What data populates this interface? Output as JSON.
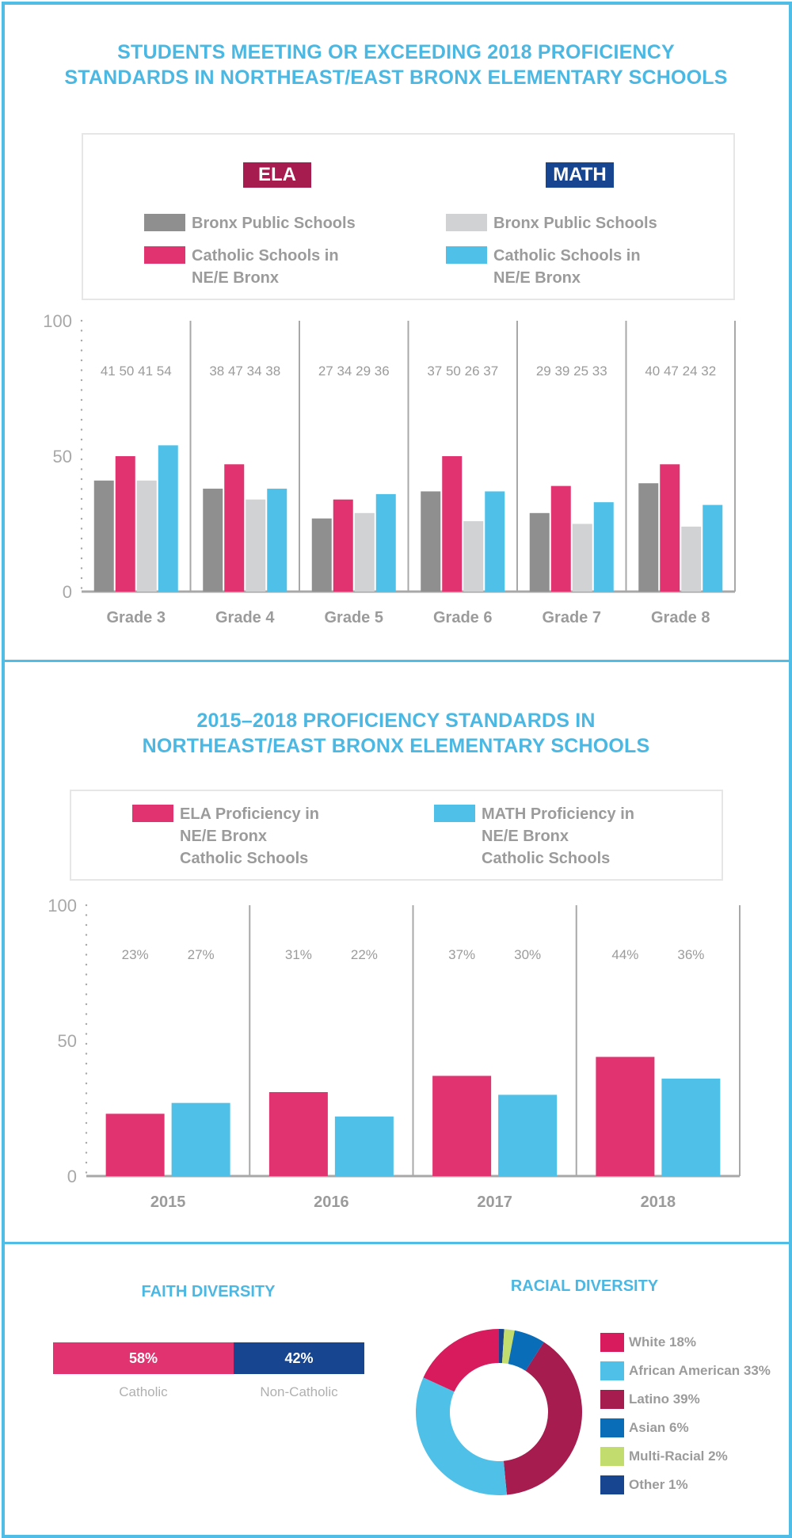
{
  "colors": {
    "frame": "#4FBDE6",
    "title": "#4AB8E3",
    "bronx_ela": "#8F8F8F",
    "catholic_ela": "#E0336F",
    "bronx_math": "#D1D2D4",
    "catholic_math": "#4FC1E8",
    "ela_badge": "#A61C4F",
    "math_badge": "#17458F",
    "axis": "#A8A8A8",
    "text_gray": "#9B9B9B"
  },
  "chart_data": [
    {
      "type": "bar",
      "title": "STUDENTS MEETING OR EXCEEDING 2018 PROFICIENCY STANDARDS IN NORTHEAST/EAST BRONX ELEMENTARY SCHOOLS",
      "title_lines": [
        "STUDENTS MEETING OR EXCEEDING 2018 PROFICIENCY",
        "STANDARDS IN NORTHEAST/EAST BRONX ELEMENTARY SCHOOLS"
      ],
      "legend": {
        "groups": [
          {
            "badge": "ELA",
            "items": [
              {
                "label": "Bronx Public Schools",
                "color_key": "bronx_ela"
              },
              {
                "label_lines": [
                  "Catholic Schools in",
                  "NE/E Bronx"
                ],
                "color_key": "catholic_ela"
              }
            ]
          },
          {
            "badge": "MATH",
            "items": [
              {
                "label": "Bronx Public Schools",
                "color_key": "bronx_math"
              },
              {
                "label_lines": [
                  "Catholic Schools in",
                  "NE/E Bronx"
                ],
                "color_key": "catholic_math"
              }
            ]
          }
        ],
        "placement": "top"
      },
      "categories": [
        "Grade 3",
        "Grade 4",
        "Grade 5",
        "Grade 6",
        "Grade 7",
        "Grade 8"
      ],
      "series": [
        {
          "name": "ELA - Bronx Public Schools",
          "color_key": "bronx_ela",
          "values": [
            41,
            38,
            27,
            37,
            29,
            40
          ]
        },
        {
          "name": "ELA - Catholic Schools in NE/E Bronx",
          "color_key": "catholic_ela",
          "values": [
            50,
            47,
            34,
            50,
            39,
            47
          ]
        },
        {
          "name": "MATH - Bronx Public Schools",
          "color_key": "bronx_math",
          "values": [
            41,
            34,
            29,
            26,
            25,
            24
          ]
        },
        {
          "name": "MATH - Catholic Schools in NE/E Bronx",
          "color_key": "catholic_math",
          "values": [
            54,
            38,
            36,
            37,
            33,
            32
          ]
        }
      ],
      "value_labels": [
        "41 50 41 54",
        "38 47 34 38",
        "27 34 29 36",
        "37 50 26 37",
        "29 39 25 33",
        "40 47 24 32"
      ],
      "yticks": [
        "100",
        "50",
        "0"
      ],
      "ytick_values": [
        100,
        50,
        0
      ],
      "ylim": [
        0,
        100
      ],
      "xlabel": "",
      "ylabel": "",
      "grid": false
    },
    {
      "type": "bar",
      "title": "2015–2018 PROFICIENCY STANDARDS IN NORTHEAST/EAST BRONX ELEMENTARY SCHOOLS",
      "title_lines": [
        "2015–2018 PROFICIENCY STANDARDS IN",
        "NORTHEAST/EAST BRONX ELEMENTARY SCHOOLS"
      ],
      "legend": {
        "items": [
          {
            "label_lines": [
              "ELA Proficiency in",
              "NE/E Bronx",
              "Catholic Schools"
            ],
            "color_key": "catholic_ela"
          },
          {
            "label_lines": [
              "MATH Proficiency in",
              "NE/E Bronx",
              "Catholic Schools"
            ],
            "color_key": "catholic_math"
          }
        ],
        "placement": "top"
      },
      "categories": [
        "2015",
        "2016",
        "2017",
        "2018"
      ],
      "series": [
        {
          "name": "ELA Proficiency in NE/E Bronx Catholic Schools",
          "color_key": "catholic_ela",
          "values": [
            23,
            31,
            37,
            44
          ]
        },
        {
          "name": "MATH Proficiency in NE/E Bronx Catholic Schools",
          "color_key": "catholic_math",
          "values": [
            27,
            22,
            30,
            36
          ]
        }
      ],
      "value_labels": [
        [
          "23%",
          "27%"
        ],
        [
          "31%",
          "22%"
        ],
        [
          "37%",
          "30%"
        ],
        [
          "44%",
          "36%"
        ]
      ],
      "yticks": [
        "100",
        "50",
        "0"
      ],
      "ytick_values": [
        100,
        50,
        0
      ],
      "ylim": [
        0,
        100
      ],
      "xlabel": "",
      "ylabel": "",
      "grid": false
    },
    {
      "type": "bar",
      "subtype": "stacked-100",
      "title": "FAITH DIVERSITY",
      "categories": [
        "Catholic",
        "Non-Catholic"
      ],
      "values": [
        58,
        42
      ],
      "value_labels": [
        "58%",
        "42%"
      ],
      "colors": [
        "#E0336F",
        "#17458F"
      ]
    },
    {
      "type": "pie",
      "subtype": "donut",
      "title": "RACIAL DIVERSITY",
      "categories": [
        "White",
        "African American",
        "Latino",
        "Asian",
        "Multi-Racial",
        "Other"
      ],
      "values": [
        18,
        33,
        39,
        6,
        2,
        1
      ],
      "legend_labels": [
        "White 18%",
        "African American 33%",
        "Latino 39%",
        "Asian 6%",
        "Multi-Racial 2%",
        "Other 1%"
      ],
      "colors": [
        "#D81B5C",
        "#4FC1E8",
        "#A61C4F",
        "#0A6DB8",
        "#C3DC6E",
        "#17458F"
      ],
      "legend_placement": "right"
    }
  ]
}
